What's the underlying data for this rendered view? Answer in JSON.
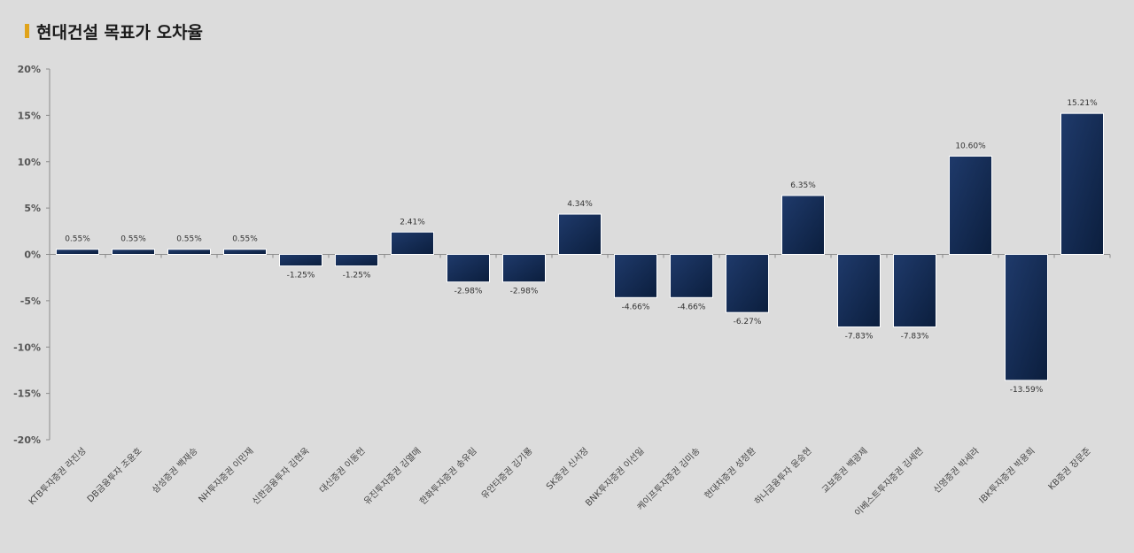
{
  "title": "현대건설 목표가 오차율",
  "chart_data": {
    "type": "bar",
    "title": "현대건설 목표가 오차율",
    "xlabel": "",
    "ylabel": "",
    "ylim": [
      -20,
      20
    ],
    "yticks": [
      20,
      15,
      10,
      5,
      0,
      -5,
      -10,
      -15,
      -20
    ],
    "ytick_labels": [
      "20%",
      "15%",
      "10%",
      "5%",
      "0%",
      "-5%",
      "-10%",
      "-15%",
      "-20%"
    ],
    "grid": false,
    "categories": [
      "KTB투자증권 라진성",
      "DB금융투자 조윤호",
      "삼성증권 백재승",
      "NH투자증권 이민재",
      "신한금융투자 김현욱",
      "대신증권 이동헌",
      "유진투자증권 김열매",
      "한화투자증권 송유림",
      "유안타증권 김기룡",
      "SK증권 신서정",
      "BNK투자증권 이선일",
      "케이프투자증권 김미송",
      "현대차증권 성정환",
      "하나금융투자 윤승현",
      "교보증권 백광제",
      "이베스트투자증권 김세련",
      "신영증권 박세라",
      "IBK투자증권 박용희",
      "KB증권 장문준"
    ],
    "values": [
      0.55,
      0.55,
      0.55,
      0.55,
      -1.25,
      -1.25,
      2.41,
      -2.98,
      -2.98,
      4.34,
      -4.66,
      -4.66,
      -6.27,
      6.35,
      -7.83,
      -7.83,
      10.6,
      -13.59,
      15.21
    ],
    "data_labels": [
      "0.55%",
      "0.55%",
      "0.55%",
      "0.55%",
      "-1.25%",
      "-1.25%",
      "2.41%",
      "-2.98%",
      "-2.98%",
      "4.34%",
      "-4.66%",
      "-4.66%",
      "-6.27%",
      "6.35%",
      "-7.83%",
      "-7.83%",
      "10.60%",
      "-13.59%",
      "15.21%"
    ],
    "bar_color_start": "#1f3a6b",
    "bar_color_end": "#0b1e3d"
  },
  "colors": {
    "background": "#dcdcdc",
    "title_marker": "#e0a31a",
    "axis": "#8c8c8c"
  }
}
